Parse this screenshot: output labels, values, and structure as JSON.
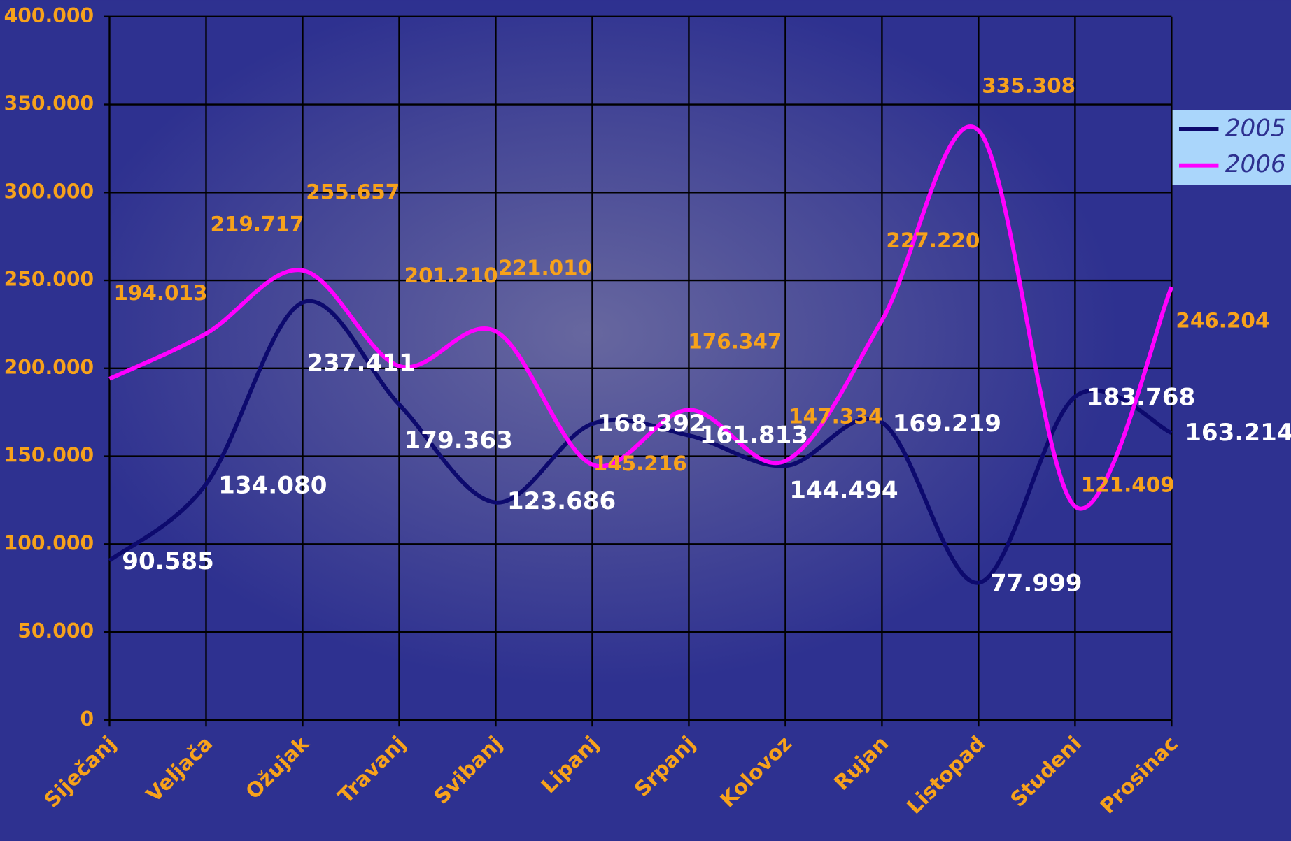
{
  "chart_data": {
    "type": "line",
    "categories": [
      "Siječanj",
      "Veljača",
      "Ožujak",
      "Travanj",
      "Svibanj",
      "Lipanj",
      "Srpanj",
      "Kolovoz",
      "Rujan",
      "Listopad",
      "Studeni",
      "Prosinac"
    ],
    "series": [
      {
        "name": "2005",
        "color": "#0d0a6e",
        "values": [
          90585,
          134080,
          237411,
          179363,
          123686,
          168392,
          161813,
          144494,
          169219,
          77999,
          183768,
          163214
        ],
        "value_labels": [
          "90.585",
          "134.080",
          "237.411",
          "179.363",
          "123.686",
          "168.392",
          "161.813",
          "144.494",
          "169.219",
          "77.999",
          "183.768",
          "163.214"
        ]
      },
      {
        "name": "2006",
        "color": "#ff00ff",
        "values": [
          194013,
          219717,
          255657,
          201210,
          221010,
          145216,
          176347,
          147334,
          227220,
          335308,
          121409,
          246204
        ],
        "value_labels": [
          "194.013",
          "219.717",
          "255.657",
          "201.210",
          "221.010",
          "145.216",
          "176.347",
          "147.334",
          "227.220",
          "335.308",
          "121.409",
          "246.204"
        ]
      }
    ],
    "ylim": [
      0,
      400000
    ],
    "yticks": [
      0,
      {
        "value": 50000,
        "label": "50.000"
      },
      {
        "value": 100000,
        "label": "100.000"
      },
      {
        "value": 150000,
        "label": "150.000"
      },
      {
        "value": 200000,
        "label": "200.000"
      },
      {
        "value": 250000,
        "label": "250.000"
      },
      {
        "value": 300000,
        "label": "300.000"
      },
      {
        "value": 350000,
        "label": "350.000"
      },
      {
        "value": 400000,
        "label": "400.000"
      }
    ],
    "grid": true,
    "legend": "right"
  }
}
